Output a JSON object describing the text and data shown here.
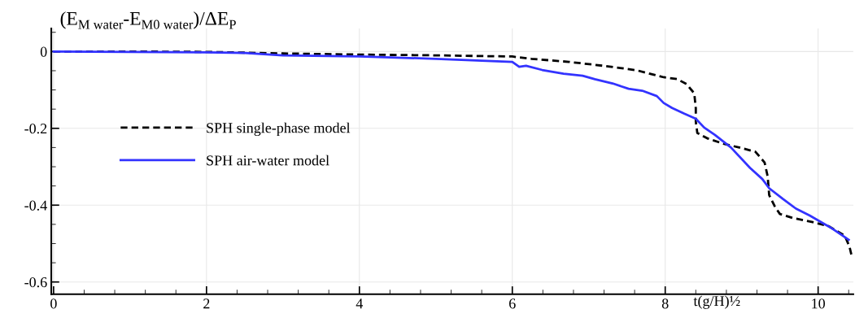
{
  "chart_data": {
    "type": "line",
    "xlabel": "t(g/H)½",
    "ylabel": "(E$_{M water}$-E$_{M0 water}$)/ΔE$_{P}$",
    "xlim": [
      -0.03,
      10.46
    ],
    "ylim": [
      -0.632,
      0.06
    ],
    "xticks": [
      0,
      2,
      4,
      6,
      8,
      10
    ],
    "yticks": [
      0,
      -0.2,
      -0.4,
      -0.6
    ],
    "grid": true,
    "legend": "left",
    "series": [
      {
        "name": "SPH single-phase model",
        "color": "#000000",
        "line_style": "dashed",
        "x": [
          0,
          1,
          2,
          3,
          4,
          5,
          6,
          6.25,
          6.74,
          7.27,
          7.63,
          7.84,
          7.98,
          8.16,
          8.28,
          8.38,
          8.4,
          8.4,
          8.42,
          8.55,
          8.76,
          8.97,
          9.18,
          9.3,
          9.34,
          9.36,
          9.43,
          9.5,
          9.68,
          9.93,
          10.14,
          10.35,
          10.41,
          10.44
        ],
        "values": [
          0,
          0,
          -0.001,
          -0.005,
          -0.008,
          -0.01,
          -0.013,
          -0.019,
          -0.027,
          -0.039,
          -0.049,
          -0.06,
          -0.067,
          -0.072,
          -0.085,
          -0.109,
          -0.148,
          -0.183,
          -0.212,
          -0.226,
          -0.24,
          -0.25,
          -0.261,
          -0.289,
          -0.325,
          -0.374,
          -0.402,
          -0.423,
          -0.434,
          -0.444,
          -0.455,
          -0.48,
          -0.508,
          -0.533
        ]
      },
      {
        "name": "SPH air-water model",
        "color": "#3333ff",
        "line_style": "solid",
        "x": [
          0,
          1,
          2,
          2.5,
          3,
          4,
          5,
          6,
          6.09,
          6.18,
          6.39,
          6.67,
          6.92,
          7.08,
          7.31,
          7.52,
          7.7,
          7.89,
          7.98,
          8.09,
          8.25,
          8.4,
          8.51,
          8.65,
          8.86,
          9.11,
          9.27,
          9.36,
          9.54,
          9.71,
          9.89,
          10.17,
          10.4
        ],
        "values": [
          0,
          -0.001,
          -0.002,
          -0.004,
          -0.01,
          -0.013,
          -0.019,
          -0.027,
          -0.04,
          -0.037,
          -0.048,
          -0.058,
          -0.063,
          -0.072,
          -0.083,
          -0.097,
          -0.102,
          -0.116,
          -0.134,
          -0.147,
          -0.162,
          -0.175,
          -0.198,
          -0.217,
          -0.25,
          -0.303,
          -0.332,
          -0.356,
          -0.384,
          -0.409,
          -0.427,
          -0.459,
          -0.49
        ]
      }
    ]
  }
}
